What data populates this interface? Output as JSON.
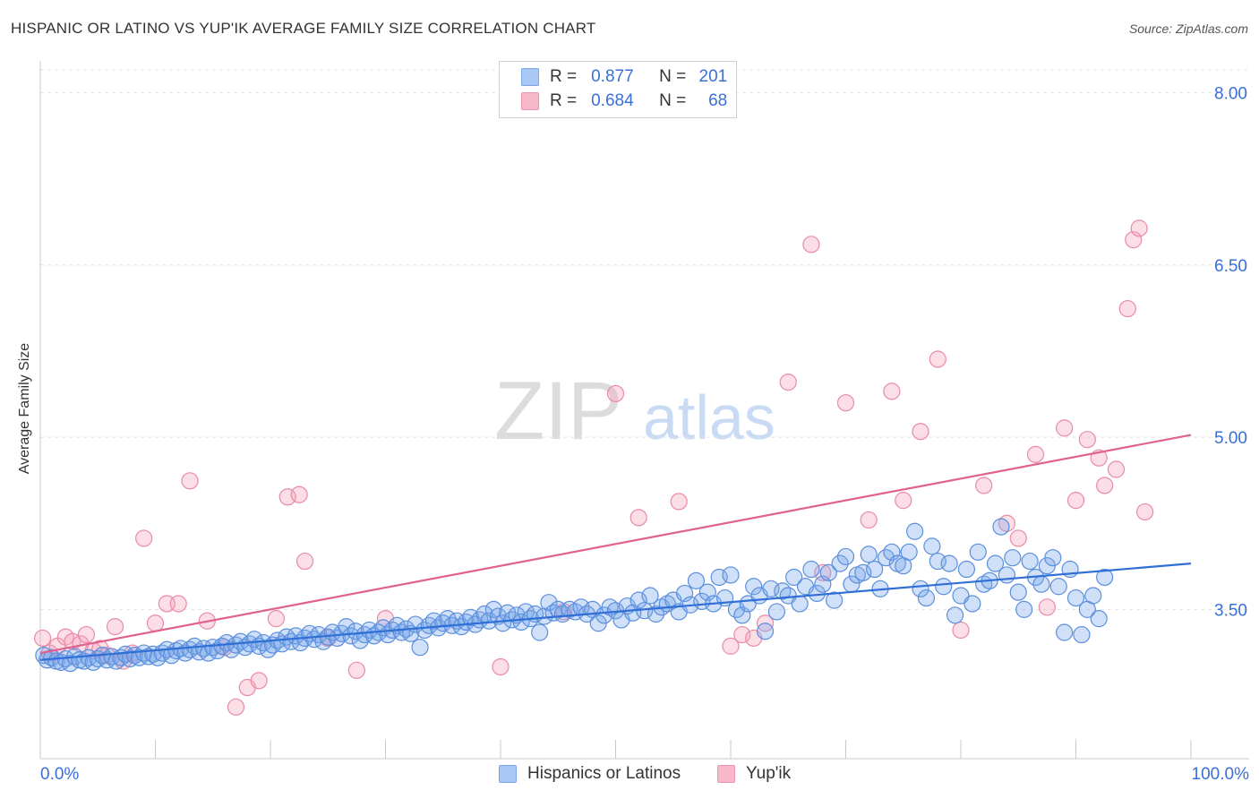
{
  "header": {
    "title": "HISPANIC OR LATINO VS YUP'IK AVERAGE FAMILY SIZE CORRELATION CHART",
    "source": "Source: ZipAtlas.com"
  },
  "watermark": {
    "part1": "ZIP",
    "part2": "atlas"
  },
  "legend": {
    "rows": [
      {
        "r_label": "R =",
        "r_value": "0.877",
        "n_label": "N =",
        "n_value": "201",
        "color": "#a9c8f5"
      },
      {
        "r_label": "R =",
        "r_value": "0.684",
        "n_label": "N =",
        "n_value": "68",
        "color": "#f7b9ca"
      }
    ]
  },
  "bottom_legend": [
    {
      "label": "Hispanics or Latinos",
      "color": "#a9c8f5"
    },
    {
      "label": "Yup'ik",
      "color": "#f7b9ca"
    }
  ],
  "colors": {
    "blue_fill": "rgba(120,165,235,0.35)",
    "blue_stroke": "#5b8fdc",
    "blue_line": "#2f6fd6",
    "pink_fill": "rgba(245,160,185,0.35)",
    "pink_stroke": "#e98aa8",
    "pink_line": "#e0628e",
    "axis_label": "#3a6fd8",
    "grid": "#e2e2e2"
  },
  "chart_data": {
    "type": "scatter",
    "title": "HISPANIC OR LATINO VS YUP'IK AVERAGE FAMILY SIZE CORRELATION CHART",
    "xlabel": "",
    "ylabel": "Average Family Size",
    "xlim": [
      0,
      100
    ],
    "ylim": [
      2.2,
      8.2
    ],
    "x_tick_labels": [
      "0.0%",
      "100.0%"
    ],
    "y_ticks": [
      3.5,
      5.0,
      6.5,
      8.0
    ],
    "y_tick_labels": [
      "3.50",
      "5.00",
      "6.50",
      "8.00"
    ],
    "grid": "horizontal dashed",
    "series": [
      {
        "name": "Hispanics or Latinos",
        "r": 0.877,
        "n": 201,
        "trend": [
          [
            0,
            3.06
          ],
          [
            100,
            3.9
          ]
        ],
        "points": [
          [
            0.3,
            3.1
          ],
          [
            0.6,
            3.06
          ],
          [
            1.0,
            3.08
          ],
          [
            1.4,
            3.05
          ],
          [
            1.8,
            3.04
          ],
          [
            2.2,
            3.07
          ],
          [
            2.6,
            3.03
          ],
          [
            3.0,
            3.09
          ],
          [
            3.4,
            3.06
          ],
          [
            3.8,
            3.05
          ],
          [
            4.2,
            3.08
          ],
          [
            4.6,
            3.04
          ],
          [
            5.0,
            3.07
          ],
          [
            5.4,
            3.1
          ],
          [
            5.8,
            3.06
          ],
          [
            6.2,
            3.09
          ],
          [
            6.6,
            3.05
          ],
          [
            7.0,
            3.08
          ],
          [
            7.4,
            3.11
          ],
          [
            7.8,
            3.07
          ],
          [
            8.2,
            3.1
          ],
          [
            8.6,
            3.08
          ],
          [
            9.0,
            3.12
          ],
          [
            9.4,
            3.09
          ],
          [
            9.8,
            3.11
          ],
          [
            10.2,
            3.08
          ],
          [
            10.6,
            3.12
          ],
          [
            11.0,
            3.15
          ],
          [
            11.4,
            3.1
          ],
          [
            11.8,
            3.14
          ],
          [
            12.2,
            3.16
          ],
          [
            12.6,
            3.12
          ],
          [
            13.0,
            3.15
          ],
          [
            13.4,
            3.18
          ],
          [
            13.8,
            3.13
          ],
          [
            14.2,
            3.16
          ],
          [
            14.6,
            3.12
          ],
          [
            15.0,
            3.17
          ],
          [
            15.4,
            3.14
          ],
          [
            15.8,
            3.18
          ],
          [
            16.2,
            3.21
          ],
          [
            16.6,
            3.15
          ],
          [
            17.0,
            3.19
          ],
          [
            17.4,
            3.22
          ],
          [
            17.8,
            3.17
          ],
          [
            18.2,
            3.2
          ],
          [
            18.6,
            3.24
          ],
          [
            19.0,
            3.18
          ],
          [
            19.4,
            3.21
          ],
          [
            19.8,
            3.15
          ],
          [
            20.2,
            3.19
          ],
          [
            20.6,
            3.23
          ],
          [
            21.0,
            3.2
          ],
          [
            21.4,
            3.26
          ],
          [
            21.8,
            3.22
          ],
          [
            22.2,
            3.27
          ],
          [
            22.6,
            3.21
          ],
          [
            23.0,
            3.25
          ],
          [
            23.4,
            3.29
          ],
          [
            23.8,
            3.24
          ],
          [
            24.2,
            3.28
          ],
          [
            24.6,
            3.22
          ],
          [
            25.0,
            3.26
          ],
          [
            25.4,
            3.3
          ],
          [
            25.8,
            3.25
          ],
          [
            26.2,
            3.29
          ],
          [
            26.6,
            3.35
          ],
          [
            27.0,
            3.27
          ],
          [
            27.4,
            3.31
          ],
          [
            27.8,
            3.23
          ],
          [
            28.2,
            3.28
          ],
          [
            28.6,
            3.32
          ],
          [
            29.0,
            3.27
          ],
          [
            29.4,
            3.3
          ],
          [
            29.8,
            3.34
          ],
          [
            30.2,
            3.28
          ],
          [
            30.6,
            3.32
          ],
          [
            31.0,
            3.36
          ],
          [
            31.4,
            3.3
          ],
          [
            31.8,
            3.33
          ],
          [
            32.2,
            3.29
          ],
          [
            32.6,
            3.37
          ],
          [
            33.0,
            3.17
          ],
          [
            33.4,
            3.32
          ],
          [
            33.8,
            3.36
          ],
          [
            34.2,
            3.4
          ],
          [
            34.6,
            3.34
          ],
          [
            35.0,
            3.38
          ],
          [
            35.4,
            3.42
          ],
          [
            35.8,
            3.36
          ],
          [
            36.2,
            3.4
          ],
          [
            36.6,
            3.35
          ],
          [
            37.0,
            3.39
          ],
          [
            37.4,
            3.43
          ],
          [
            37.8,
            3.37
          ],
          [
            38.2,
            3.41
          ],
          [
            38.6,
            3.46
          ],
          [
            39.0,
            3.4
          ],
          [
            39.4,
            3.5
          ],
          [
            39.8,
            3.44
          ],
          [
            40.2,
            3.38
          ],
          [
            40.6,
            3.47
          ],
          [
            41.0,
            3.41
          ],
          [
            41.4,
            3.45
          ],
          [
            41.8,
            3.39
          ],
          [
            42.2,
            3.48
          ],
          [
            42.6,
            3.42
          ],
          [
            43.0,
            3.46
          ],
          [
            43.4,
            3.3
          ],
          [
            43.8,
            3.44
          ],
          [
            44.2,
            3.56
          ],
          [
            44.6,
            3.47
          ],
          [
            45.0,
            3.5
          ],
          [
            45.4,
            3.46
          ],
          [
            46.0,
            3.5
          ],
          [
            46.5,
            3.48
          ],
          [
            47.0,
            3.52
          ],
          [
            47.5,
            3.46
          ],
          [
            48.0,
            3.5
          ],
          [
            48.5,
            3.38
          ],
          [
            49.0,
            3.45
          ],
          [
            49.5,
            3.52
          ],
          [
            50.0,
            3.49
          ],
          [
            50.5,
            3.41
          ],
          [
            51.0,
            3.53
          ],
          [
            51.5,
            3.47
          ],
          [
            52.0,
            3.58
          ],
          [
            52.5,
            3.49
          ],
          [
            53.0,
            3.62
          ],
          [
            53.5,
            3.46
          ],
          [
            54.0,
            3.52
          ],
          [
            54.5,
            3.55
          ],
          [
            55.0,
            3.58
          ],
          [
            55.5,
            3.48
          ],
          [
            56.0,
            3.64
          ],
          [
            56.5,
            3.54
          ],
          [
            57.0,
            3.75
          ],
          [
            57.5,
            3.57
          ],
          [
            58.0,
            3.65
          ],
          [
            58.5,
            3.55
          ],
          [
            59.0,
            3.78
          ],
          [
            59.5,
            3.6
          ],
          [
            60.0,
            3.8
          ],
          [
            60.5,
            3.5
          ],
          [
            61.0,
            3.45
          ],
          [
            61.5,
            3.55
          ],
          [
            62.0,
            3.7
          ],
          [
            62.5,
            3.62
          ],
          [
            63.0,
            3.31
          ],
          [
            63.5,
            3.68
          ],
          [
            64.0,
            3.48
          ],
          [
            64.5,
            3.66
          ],
          [
            65.0,
            3.62
          ],
          [
            65.5,
            3.78
          ],
          [
            66.0,
            3.55
          ],
          [
            66.5,
            3.7
          ],
          [
            67.0,
            3.85
          ],
          [
            67.5,
            3.64
          ],
          [
            68.0,
            3.72
          ],
          [
            68.5,
            3.82
          ],
          [
            69.0,
            3.58
          ],
          [
            69.5,
            3.9
          ],
          [
            70.0,
            3.96
          ],
          [
            70.5,
            3.72
          ],
          [
            71.0,
            3.8
          ],
          [
            71.5,
            3.82
          ],
          [
            72.0,
            3.98
          ],
          [
            72.5,
            3.85
          ],
          [
            73.0,
            3.68
          ],
          [
            73.5,
            3.95
          ],
          [
            74.0,
            4.0
          ],
          [
            74.5,
            3.9
          ],
          [
            75.0,
            3.88
          ],
          [
            75.5,
            4.0
          ],
          [
            76.0,
            4.18
          ],
          [
            76.5,
            3.68
          ],
          [
            77.0,
            3.6
          ],
          [
            77.5,
            4.05
          ],
          [
            78.0,
            3.92
          ],
          [
            78.5,
            3.7
          ],
          [
            79.0,
            3.9
          ],
          [
            79.5,
            3.45
          ],
          [
            80.0,
            3.62
          ],
          [
            80.5,
            3.85
          ],
          [
            81.0,
            3.55
          ],
          [
            81.5,
            4.0
          ],
          [
            82.0,
            3.72
          ],
          [
            82.5,
            3.75
          ],
          [
            83.0,
            3.9
          ],
          [
            83.5,
            4.22
          ],
          [
            84.0,
            3.8
          ],
          [
            84.5,
            3.95
          ],
          [
            85.0,
            3.65
          ],
          [
            85.5,
            3.5
          ],
          [
            86.0,
            3.92
          ],
          [
            86.5,
            3.78
          ],
          [
            87.0,
            3.72
          ],
          [
            87.5,
            3.88
          ],
          [
            88.0,
            3.95
          ],
          [
            88.5,
            3.7
          ],
          [
            89.0,
            3.3
          ],
          [
            89.5,
            3.85
          ],
          [
            90.0,
            3.6
          ],
          [
            90.5,
            3.28
          ],
          [
            91.0,
            3.5
          ],
          [
            91.5,
            3.62
          ],
          [
            92.0,
            3.42
          ],
          [
            92.5,
            3.78
          ]
        ]
      },
      {
        "name": "Yup'ik",
        "r": 0.684,
        "n": 68,
        "trend": [
          [
            0,
            3.12
          ],
          [
            100,
            5.02
          ]
        ],
        "points": [
          [
            0.2,
            3.25
          ],
          [
            0.8,
            3.12
          ],
          [
            1.5,
            3.18
          ],
          [
            2.2,
            3.26
          ],
          [
            2.8,
            3.22
          ],
          [
            3.5,
            3.2
          ],
          [
            4.0,
            3.28
          ],
          [
            4.6,
            3.14
          ],
          [
            5.2,
            3.16
          ],
          [
            5.8,
            3.1
          ],
          [
            6.5,
            3.35
          ],
          [
            7.2,
            3.05
          ],
          [
            8.0,
            3.12
          ],
          [
            9.0,
            4.12
          ],
          [
            10.0,
            3.38
          ],
          [
            11.0,
            3.55
          ],
          [
            12.0,
            3.55
          ],
          [
            13.0,
            4.62
          ],
          [
            14.5,
            3.4
          ],
          [
            16.0,
            3.17
          ],
          [
            17.0,
            2.65
          ],
          [
            18.0,
            2.82
          ],
          [
            19.0,
            2.88
          ],
          [
            20.5,
            3.42
          ],
          [
            21.5,
            4.48
          ],
          [
            22.5,
            4.5
          ],
          [
            23.0,
            3.92
          ],
          [
            25.0,
            3.25
          ],
          [
            27.5,
            2.97
          ],
          [
            30.0,
            3.42
          ],
          [
            40.0,
            3.0
          ],
          [
            45.5,
            3.48
          ],
          [
            50.0,
            5.38
          ],
          [
            52.0,
            4.3
          ],
          [
            55.5,
            4.44
          ],
          [
            60.0,
            3.18
          ],
          [
            61.0,
            3.28
          ],
          [
            62.0,
            3.25
          ],
          [
            63.0,
            3.38
          ],
          [
            65.0,
            5.48
          ],
          [
            67.0,
            6.68
          ],
          [
            68.0,
            3.82
          ],
          [
            70.0,
            5.3
          ],
          [
            72.0,
            4.28
          ],
          [
            74.0,
            5.4
          ],
          [
            75.0,
            4.45
          ],
          [
            76.5,
            5.05
          ],
          [
            78.0,
            5.68
          ],
          [
            80.0,
            3.32
          ],
          [
            82.0,
            4.58
          ],
          [
            84.0,
            4.25
          ],
          [
            85.0,
            4.12
          ],
          [
            86.5,
            4.85
          ],
          [
            87.5,
            3.52
          ],
          [
            89.0,
            5.08
          ],
          [
            90.0,
            4.45
          ],
          [
            91.0,
            4.98
          ],
          [
            92.0,
            4.82
          ],
          [
            92.5,
            4.58
          ],
          [
            93.5,
            4.72
          ],
          [
            94.5,
            6.12
          ],
          [
            95.0,
            6.72
          ],
          [
            95.5,
            6.82
          ],
          [
            96.0,
            4.35
          ]
        ]
      }
    ]
  }
}
